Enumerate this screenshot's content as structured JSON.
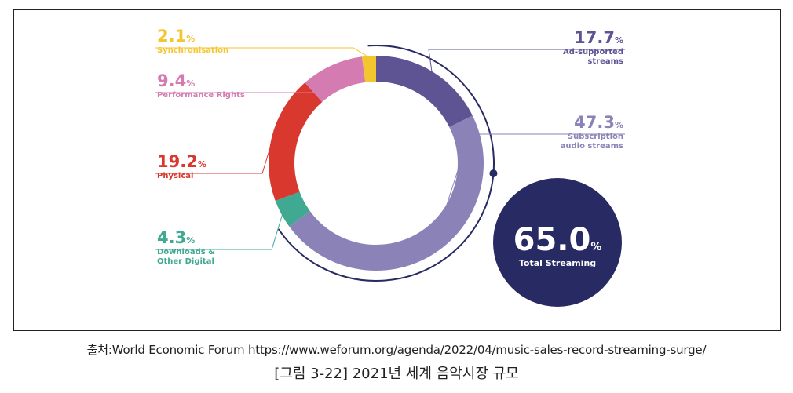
{
  "chart_data": {
    "type": "pie",
    "style": "donut",
    "title": "",
    "slices": [
      {
        "name": "Ad-supported streams",
        "value": 17.7,
        "color": "#5e5494",
        "label_lines": [
          "Ad-supported",
          "streams"
        ]
      },
      {
        "name": "Subscription audio streams",
        "value": 47.3,
        "color": "#8b83b8",
        "label_lines": [
          "Subscription",
          "audio streams"
        ]
      },
      {
        "name": "Downloads & Other Digital",
        "value": 4.3,
        "color": "#3fa992",
        "label_lines": [
          "Downloads &",
          "Other Digital"
        ]
      },
      {
        "name": "Physical",
        "value": 19.2,
        "color": "#d9382f",
        "label_lines": [
          "Physical"
        ]
      },
      {
        "name": "Performance Rights",
        "value": 9.4,
        "color": "#d47cb2",
        "label_lines": [
          "Performance Rights"
        ]
      },
      {
        "name": "Synchronisation",
        "value": 2.1,
        "color": "#f3c630",
        "label_lines": [
          "Synchronisation"
        ]
      }
    ],
    "slice_labels": [
      {
        "value_text": "17.7",
        "pct": "%",
        "lines": [
          "Ad-supported",
          "streams"
        ]
      },
      {
        "value_text": "47.3",
        "pct": "%",
        "lines": [
          "Subscription",
          "audio streams"
        ]
      },
      {
        "value_text": "4.3",
        "pct": "%",
        "lines": [
          "Downloads &",
          "Other Digital"
        ]
      },
      {
        "value_text": "19.2",
        "pct": "%",
        "lines": [
          "Physical"
        ]
      },
      {
        "value_text": "9.4",
        "pct": "%",
        "lines": [
          "Performance Rights"
        ]
      },
      {
        "value_text": "2.1",
        "pct": "%",
        "lines": [
          "Synchronisation"
        ]
      }
    ],
    "total": {
      "value": 65.0,
      "value_text": "65.0",
      "pct": "%",
      "label": "Total Streaming",
      "color": "#282a64"
    }
  },
  "source": "출처:World Economic Forum https://www.weforum.org/agenda/2022/04/music-sales-record-streaming-surge/",
  "caption": "[그림 3-22] 2021년 세계 음악시장 규모"
}
